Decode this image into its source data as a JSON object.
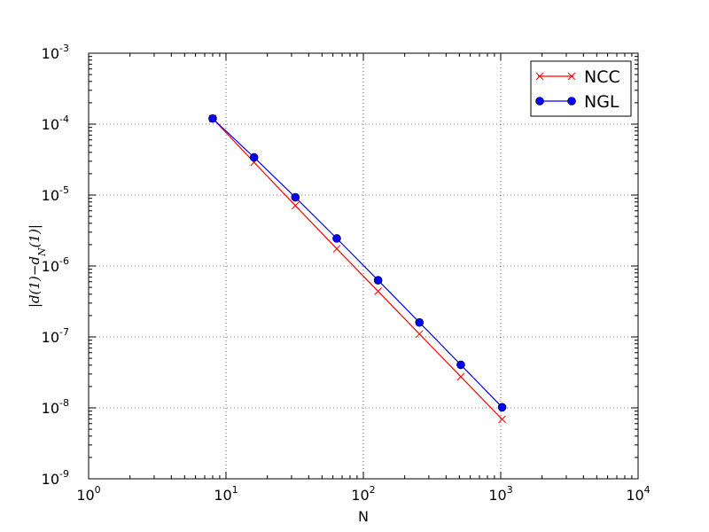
{
  "chart_data": {
    "type": "line",
    "xscale": "log",
    "yscale": "log",
    "xlabel": "N",
    "ylabel": "|d(1)−d_N(1)|",
    "ylabel_parts": {
      "pre": "|d(1)−d",
      "sub": "N",
      "post": "(1)|"
    },
    "xlim": [
      1,
      10000
    ],
    "ylim": [
      1e-09,
      0.001
    ],
    "grid": true,
    "legend_position": "top-right",
    "x_ticks": [
      {
        "base": "10",
        "exp": "0"
      },
      {
        "base": "10",
        "exp": "1"
      },
      {
        "base": "10",
        "exp": "2"
      },
      {
        "base": "10",
        "exp": "3"
      },
      {
        "base": "10",
        "exp": "4"
      }
    ],
    "y_ticks": [
      {
        "base": "10",
        "exp": "-9"
      },
      {
        "base": "10",
        "exp": "-8"
      },
      {
        "base": "10",
        "exp": "-7"
      },
      {
        "base": "10",
        "exp": "-6"
      },
      {
        "base": "10",
        "exp": "-5"
      },
      {
        "base": "10",
        "exp": "-4"
      },
      {
        "base": "10",
        "exp": "-3"
      }
    ],
    "x": [
      8,
      16,
      32,
      64,
      128,
      256,
      512,
      1024
    ],
    "series": [
      {
        "name": "NCC",
        "color": "#ff0000",
        "marker": "x",
        "values": [
          0.00012,
          2.9e-05,
          7.1e-06,
          1.75e-06,
          4.4e-07,
          1.1e-07,
          2.75e-08,
          6.9e-09
        ]
      },
      {
        "name": "NGL",
        "color": "#0000ff",
        "marker": "circle",
        "values": [
          0.00012,
          3.4e-05,
          9.3e-06,
          2.45e-06,
          6.3e-07,
          1.6e-07,
          4.05e-08,
          1.02e-08
        ]
      }
    ]
  }
}
